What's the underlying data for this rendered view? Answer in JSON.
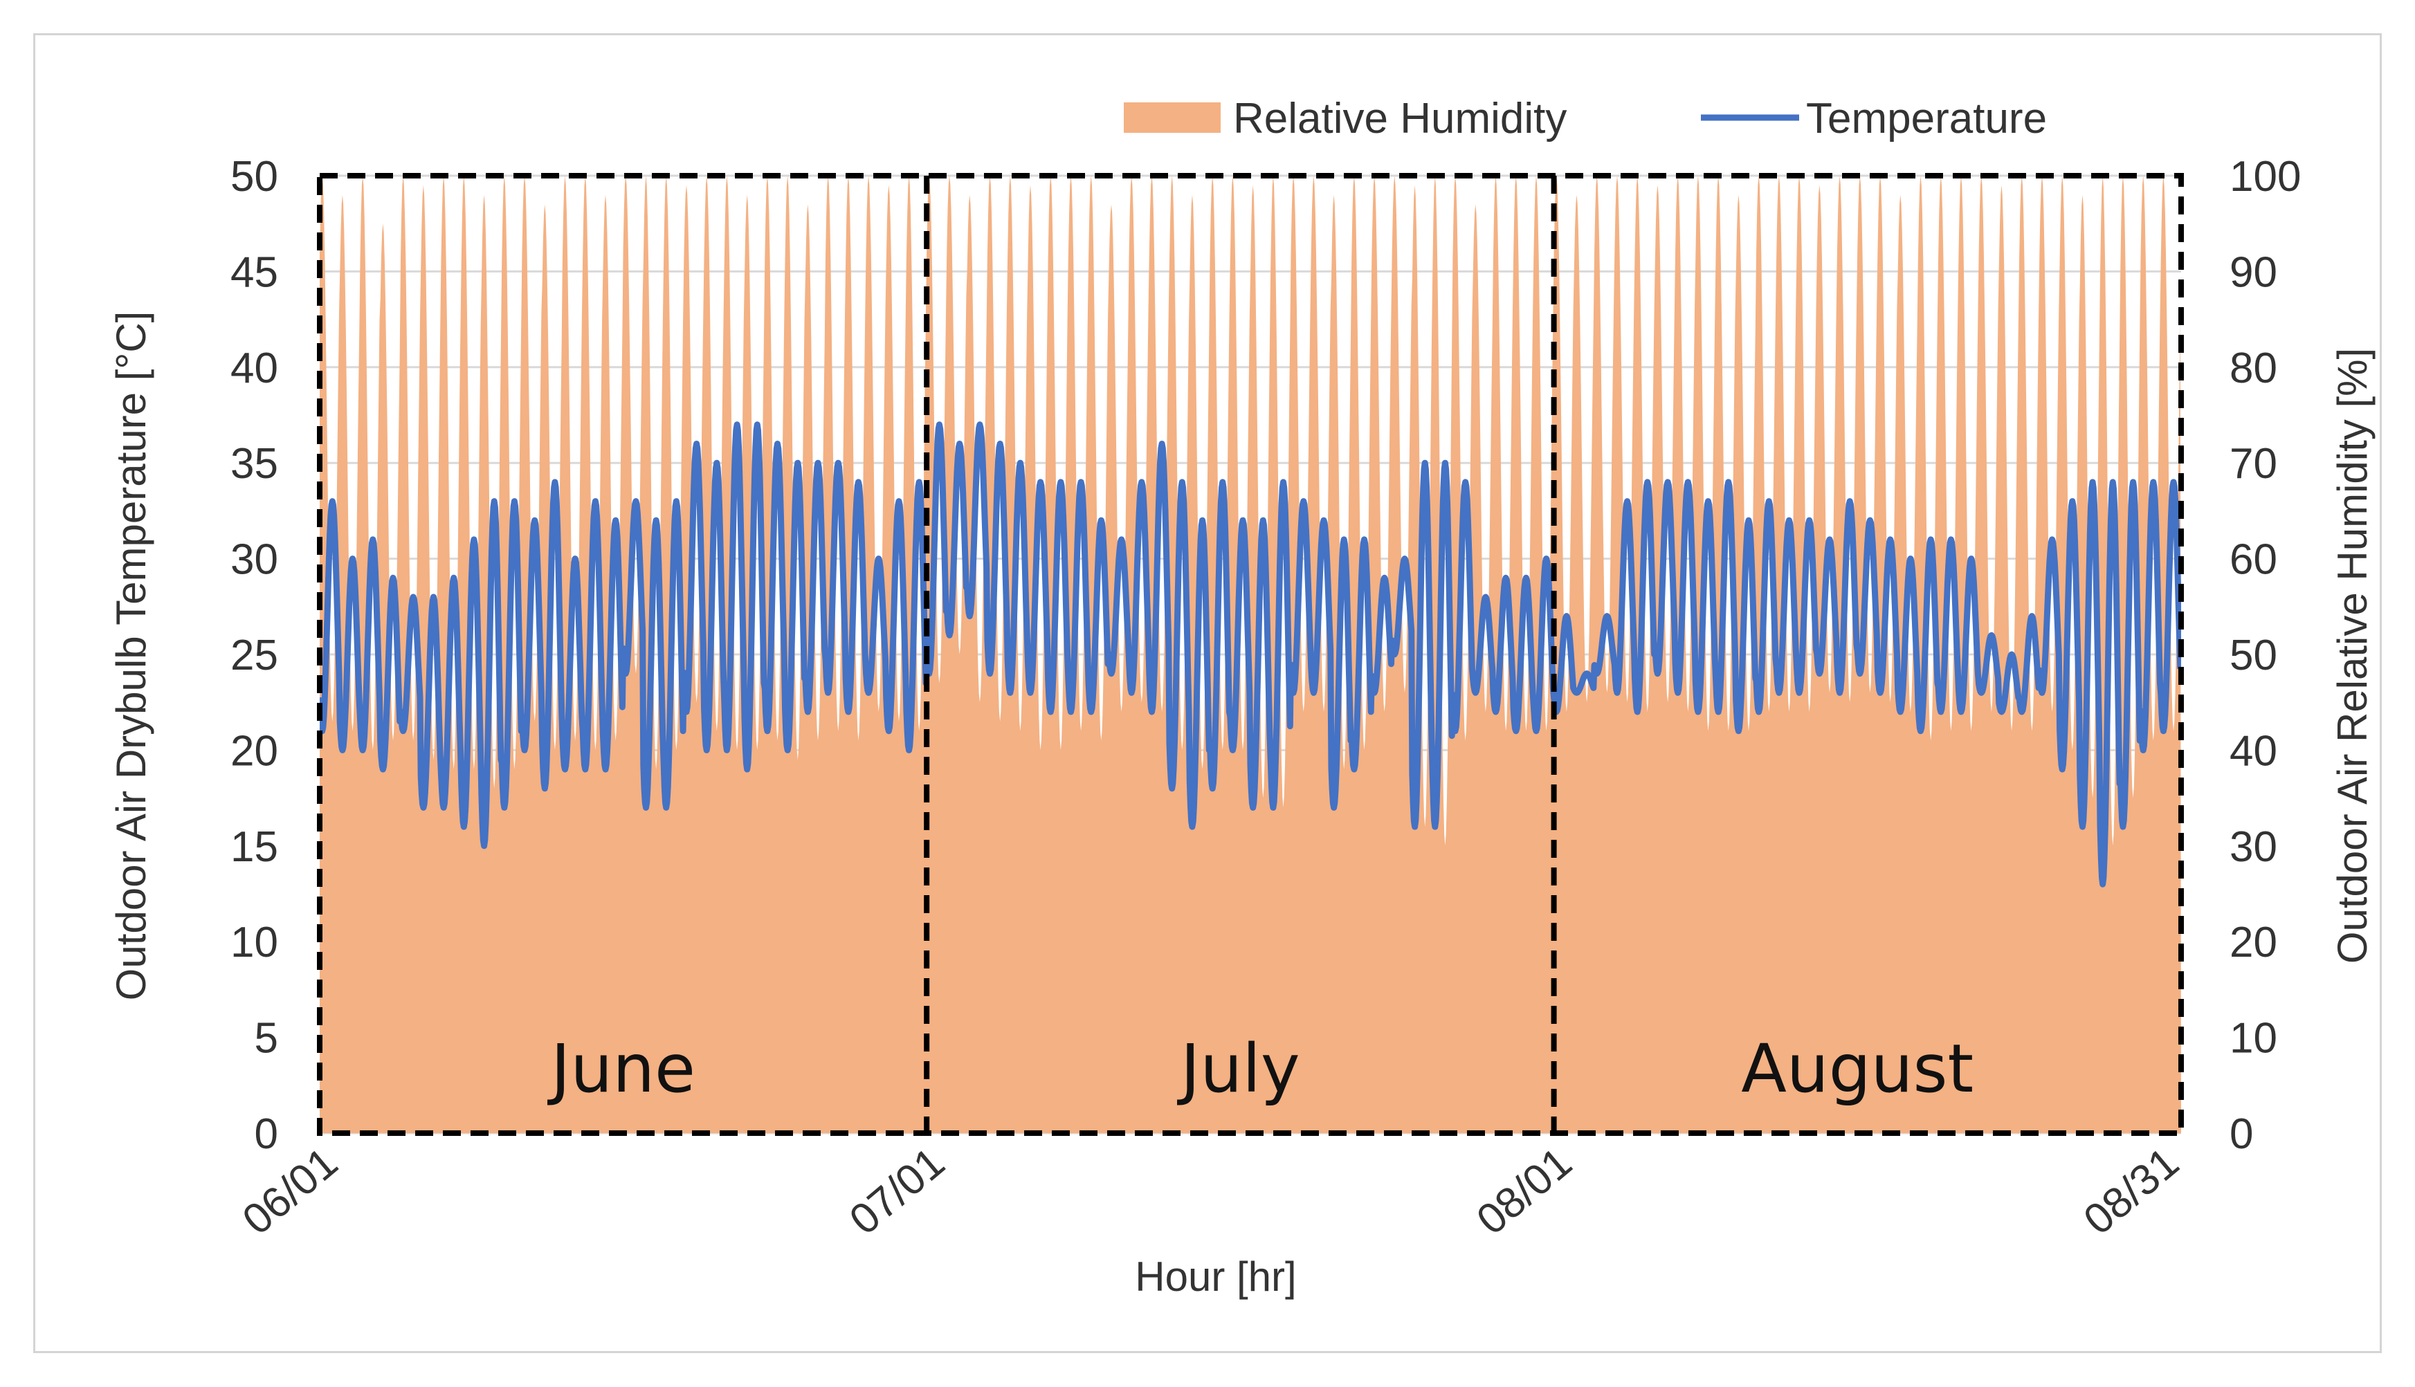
{
  "chart_data": {
    "type": "area+line",
    "title": "",
    "xlabel": "Hour [hr]",
    "ylabel_left": "Outdoor Air Drybulb Temperature [°C]",
    "ylabel_right": "Outdoor Air Relative Humidity [%]",
    "ylim_left": [
      0,
      50
    ],
    "ylim_right": [
      0,
      100
    ],
    "yticks_left": [
      "0",
      "5",
      "10",
      "15",
      "20",
      "25",
      "30",
      "35",
      "40",
      "45",
      "50"
    ],
    "yticks_right": [
      "0",
      "10",
      "20",
      "30",
      "40",
      "50",
      "60",
      "70",
      "80",
      "90",
      "100"
    ],
    "xticks": [
      "06/01",
      "07/01",
      "08/01",
      "08/31"
    ],
    "month_labels": [
      "June",
      "July",
      "August"
    ],
    "legend": [
      "Relative Humidity",
      "Temperature"
    ],
    "legend_position": "top-right",
    "grid": true,
    "days": 92,
    "colors": {
      "humidity": "#f4b183",
      "temperature": "#4472c4",
      "grid": "#d9d9d9",
      "divider": "#000000"
    },
    "series": [
      {
        "name": "Temperature",
        "axis": "left",
        "unit": "°C",
        "daily_min": [
          21,
          20,
          20,
          19,
          21,
          17,
          17,
          16,
          15,
          17,
          20,
          18,
          19,
          19,
          19,
          24,
          17,
          17,
          22,
          20,
          20,
          19,
          21,
          20,
          22,
          23,
          22,
          23,
          21,
          20,
          24,
          26,
          27,
          24,
          23,
          23,
          22,
          22,
          22,
          24,
          23,
          22,
          18,
          16,
          18,
          20,
          17,
          17,
          23,
          23,
          17,
          19,
          23,
          25,
          16,
          16,
          21,
          23,
          22,
          21,
          21,
          22,
          23,
          24,
          23,
          22,
          24,
          23,
          22,
          22,
          21,
          22,
          23,
          23,
          24,
          23,
          24,
          23,
          22,
          21,
          22,
          22,
          23,
          22,
          22,
          23,
          19,
          16,
          13,
          16,
          20,
          21
        ],
        "daily_max": [
          33,
          30,
          31,
          29,
          28,
          28,
          29,
          31,
          33,
          33,
          32,
          34,
          30,
          33,
          32,
          33,
          32,
          33,
          36,
          35,
          37,
          37,
          36,
          35,
          35,
          35,
          34,
          30,
          33,
          34,
          37,
          36,
          37,
          36,
          35,
          34,
          34,
          34,
          32,
          31,
          34,
          36,
          34,
          32,
          34,
          32,
          32,
          34,
          33,
          32,
          31,
          31,
          29,
          30,
          35,
          35,
          34,
          28,
          29,
          29,
          30,
          27,
          24,
          27,
          33,
          34,
          34,
          34,
          33,
          34,
          32,
          33,
          32,
          32,
          31,
          33,
          32,
          31,
          30,
          31,
          31,
          30,
          26,
          25,
          27,
          31,
          33,
          34,
          34,
          34,
          34,
          34
        ],
        "daily_mean": [
          26,
          25,
          25,
          24,
          24,
          22,
          22,
          24,
          24,
          25,
          26,
          26,
          25,
          26,
          25,
          28,
          24,
          25,
          29,
          28,
          29,
          28,
          29,
          28,
          29,
          30,
          28,
          27,
          27,
          27,
          30,
          31,
          31,
          30,
          29,
          29,
          28,
          28,
          27,
          27,
          28,
          29,
          26,
          24,
          26,
          26,
          24,
          25,
          28,
          28,
          24,
          25,
          26,
          27,
          26,
          26,
          27,
          26,
          26,
          25,
          25,
          25,
          24,
          25,
          28,
          28,
          29,
          29,
          28,
          28,
          27,
          27,
          27,
          27,
          28,
          28,
          28,
          27,
          26,
          26,
          27,
          26,
          25,
          24,
          25,
          27,
          26,
          25,
          24,
          25,
          27,
          27
        ]
      },
      {
        "name": "Relative Humidity",
        "axis": "right",
        "unit": "%",
        "daily_min": [
          43,
          42,
          40,
          41,
          41,
          39,
          38,
          38,
          36,
          38,
          43,
          40,
          41,
          40,
          41,
          48,
          38,
          40,
          45,
          42,
          40,
          40,
          41,
          39,
          41,
          42,
          41,
          44,
          43,
          42,
          47,
          50,
          45,
          43,
          42,
          40,
          40,
          42,
          41,
          44,
          45,
          44,
          40,
          38,
          40,
          40,
          35,
          34,
          44,
          44,
          38,
          40,
          44,
          46,
          32,
          30,
          41,
          44,
          42,
          42,
          42,
          44,
          45,
          46,
          45,
          44,
          45,
          44,
          42,
          42,
          42,
          44,
          44,
          44,
          46,
          45,
          46,
          45,
          44,
          41,
          42,
          42,
          44,
          42,
          42,
          44,
          40,
          35,
          30,
          35,
          41,
          42
        ],
        "daily_max": [
          100,
          98,
          100,
          95,
          100,
          99,
          100,
          100,
          98,
          100,
          100,
          97,
          100,
          100,
          98,
          100,
          100,
          100,
          99,
          100,
          100,
          98,
          100,
          100,
          97,
          100,
          100,
          100,
          99,
          100,
          100,
          100,
          98,
          100,
          100,
          99,
          100,
          100,
          100,
          97,
          100,
          100,
          100,
          98,
          100,
          100,
          99,
          100,
          100,
          100,
          98,
          100,
          100,
          100,
          99,
          100,
          100,
          97,
          100,
          100,
          100,
          100,
          98,
          100,
          100,
          100,
          99,
          100,
          100,
          100,
          98,
          100,
          100,
          100,
          99,
          100,
          100,
          100,
          98,
          100,
          100,
          100,
          100,
          99,
          100,
          100,
          100,
          98,
          100,
          100,
          100,
          100
        ]
      }
    ]
  }
}
